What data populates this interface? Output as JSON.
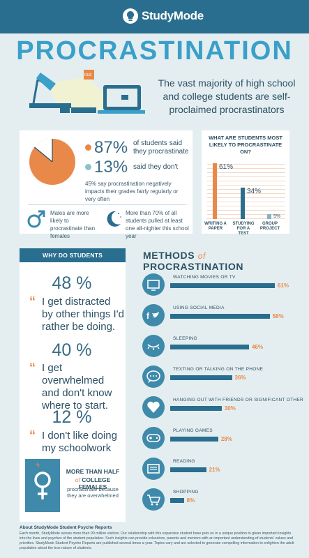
{
  "header": {
    "logo": "StudyMode"
  },
  "title": "PROCRASTINATION",
  "subtitle": "The vast majority of high school and college students are self-proclaimed procrastinators",
  "lamp_sticky": "DUE",
  "stats": {
    "pct87": "87%",
    "pct87_text": "of students said they procrastinate",
    "pct13": "13%",
    "pct13_text": "said they don't",
    "impact": "45% say procrastination negatively impacts their grades fairly regularly or very often",
    "males": "Males are more likely to procrastinate than females",
    "allnighter": "More than 70% of all students pulled at least one all-nighter this school year"
  },
  "likely": {
    "title": "WHAT ARE STUDENTS MOST LIKELY TO PROCRASTINATE ON?",
    "items": [
      {
        "label": "WRITING A PAPER",
        "value": "61%",
        "pct": 61
      },
      {
        "label": "STUDYING FOR A TEST",
        "value": "34%",
        "pct": 34
      },
      {
        "label": "GROUP PROJECT",
        "value": "5%",
        "pct": 5
      }
    ]
  },
  "why": {
    "title": "WHY DO STUDENTS PROCRASTINATE?",
    "items": [
      {
        "value": "48 %",
        "text": "I get distracted by other things I'd rather be doing."
      },
      {
        "value": "40 %",
        "text": "I get overwhelmed and don't know where to start."
      },
      {
        "value": "12 %",
        "text": "I don't like doing my schoolwork"
      }
    ],
    "female_line1": "MORE THAN HALF",
    "female_line2_of": "of",
    "female_line2": "COLLEGE FEMALES",
    "female_line3": "procrastinate because they are overwhelmed"
  },
  "methods": {
    "title_a": "METHODS",
    "title_of": "of",
    "title_b": "PROCRASTINATION",
    "items": [
      {
        "label": "WATCHING MOVIES OR TV",
        "value": "61%",
        "pct": 61,
        "icon": "tv-icon"
      },
      {
        "label": "USING SOCIAL MEDIA",
        "value": "58%",
        "pct": 58,
        "icon": "social-media-icon"
      },
      {
        "label": "SLEEPING",
        "value": "46%",
        "pct": 46,
        "icon": "sleeping-eye-icon"
      },
      {
        "label": "TEXTING OR TALKING ON THE PHONE",
        "value": "36%",
        "pct": 36,
        "icon": "chat-bubble-icon"
      },
      {
        "label": "HANGING OUT WITH FRIENDS OR SIGNIFICANT OTHER",
        "value": "30%",
        "pct": 30,
        "icon": "heart-icon"
      },
      {
        "label": "PLAYING GAMES",
        "value": "28%",
        "pct": 28,
        "icon": "game-controller-icon"
      },
      {
        "label": "READING",
        "value": "21%",
        "pct": 21,
        "icon": "book-icon"
      },
      {
        "label": "SHOPPING",
        "value": "8%",
        "pct": 8,
        "icon": "shopping-cart-icon"
      }
    ]
  },
  "footer": {
    "title": "About StudyMode Student Psyche Reports",
    "text": "Each month, StudyMode serves more than 90 million visitors. Our relationship with this expansive student base puts us in a unique position to glean important insights into the lives and psyches of the student population. Such insights can provide educators, parents and mentors with an important understanding of students' values and priorities. StudyMode Student Psyche Reports are published several times a year. Topics vary and are selected to generate compelling information to enlighten the adult population about the true nature of students."
  },
  "colors": {
    "accent": "#e8894a",
    "primary": "#2a6e8f",
    "light_blue": "#3a9fc9",
    "background": "#e4eef0"
  }
}
